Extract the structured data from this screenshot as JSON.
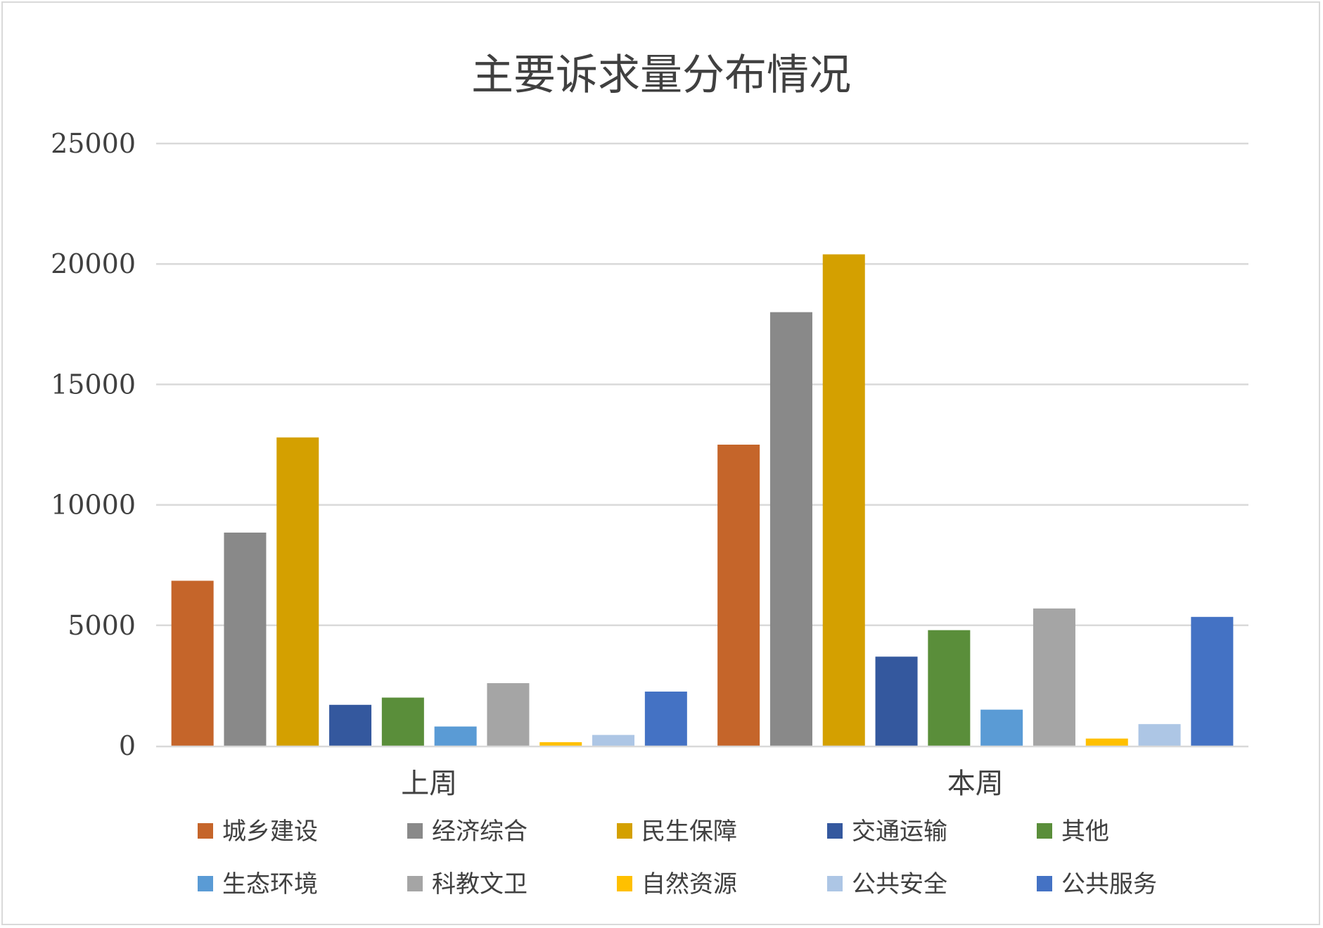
{
  "chart_data": {
    "type": "bar",
    "title": "主要诉求量分布情况",
    "xlabel": "",
    "ylabel": "",
    "ylim": [
      0,
      25000
    ],
    "yticks": [
      0,
      5000,
      10000,
      15000,
      20000,
      25000
    ],
    "grid": true,
    "legend_position": "bottom",
    "categories": [
      "上周",
      "本周"
    ],
    "series": [
      {
        "name": "城乡建设",
        "color": "#c5652a",
        "values": [
          6850,
          12500
        ]
      },
      {
        "name": "经济综合",
        "color": "#898989",
        "values": [
          8850,
          18000
        ]
      },
      {
        "name": "民生保障",
        "color": "#d4a000",
        "values": [
          12800,
          20400
        ]
      },
      {
        "name": "交通运输",
        "color": "#34589e",
        "values": [
          1700,
          3700
        ]
      },
      {
        "name": "其他",
        "color": "#5a8e3a",
        "values": [
          2000,
          4800
        ]
      },
      {
        "name": "生态环境",
        "color": "#5a9bd5",
        "values": [
          800,
          1500
        ]
      },
      {
        "name": "科教文卫",
        "color": "#a5a5a5",
        "values": [
          2600,
          5700
        ]
      },
      {
        "name": "自然资源",
        "color": "#ffc000",
        "values": [
          150,
          300
        ]
      },
      {
        "name": "公共安全",
        "color": "#adc6e5",
        "values": [
          450,
          900
        ]
      },
      {
        "name": "公共服务",
        "color": "#4472c4",
        "values": [
          2250,
          5350
        ]
      }
    ]
  }
}
